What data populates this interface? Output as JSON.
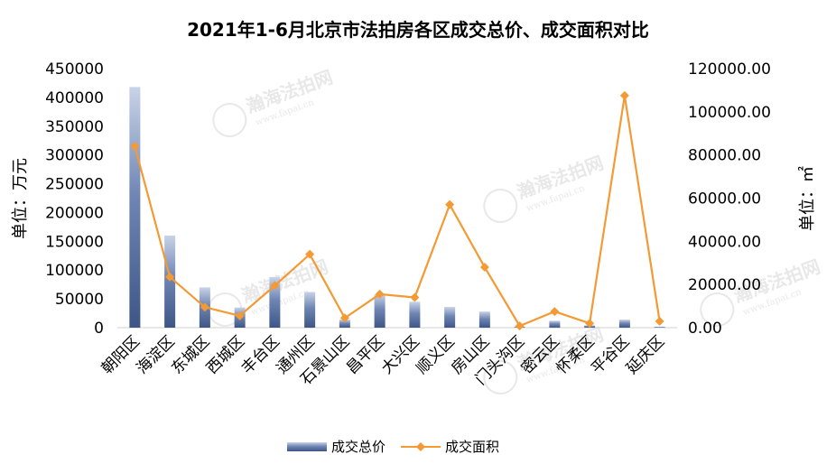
{
  "chart_data": {
    "type": "bar",
    "title": "2021年1-6月北京市法拍房各区成交总价、成交面积对比",
    "categories": [
      "朝阳区",
      "海淀区",
      "东城区",
      "西城区",
      "丰台区",
      "通州区",
      "石景山区",
      "昌平区",
      "大兴区",
      "顺义区",
      "房山区",
      "门头沟区",
      "密云区",
      "怀柔区",
      "平谷区",
      "延庆区"
    ],
    "y_left": {
      "label": "单位：万元",
      "ylim": [
        0,
        450000
      ],
      "ticks": [
        "0",
        "50000",
        "100000",
        "150000",
        "200000",
        "250000",
        "300000",
        "350000",
        "400000",
        "450000"
      ]
    },
    "y_right": {
      "label": "单位：㎡",
      "ylim": [
        0,
        120000
      ],
      "ticks": [
        "0.00",
        "20000.00",
        "40000.00",
        "60000.00",
        "80000.00",
        "100000.00",
        "120000.00"
      ]
    },
    "series": [
      {
        "name": "成交总价",
        "type": "bar",
        "axis": "left",
        "color": "#4a6395",
        "values": [
          418000,
          160000,
          70000,
          35000,
          88000,
          62000,
          14000,
          58000,
          45000,
          36000,
          28000,
          1500,
          12000,
          4000,
          14000,
          1500
        ]
      },
      {
        "name": "成交面积",
        "type": "line",
        "axis": "right",
        "color": "#f39a35",
        "values": [
          84000,
          23500,
          9500,
          5500,
          19500,
          34000,
          4500,
          15500,
          14000,
          57000,
          28000,
          800,
          7500,
          2000,
          107500,
          3000
        ]
      }
    ],
    "legend": "bottom",
    "grid": false
  },
  "watermark": {
    "text": "瀚海法拍网",
    "subtext": "www.fapai.cn"
  }
}
